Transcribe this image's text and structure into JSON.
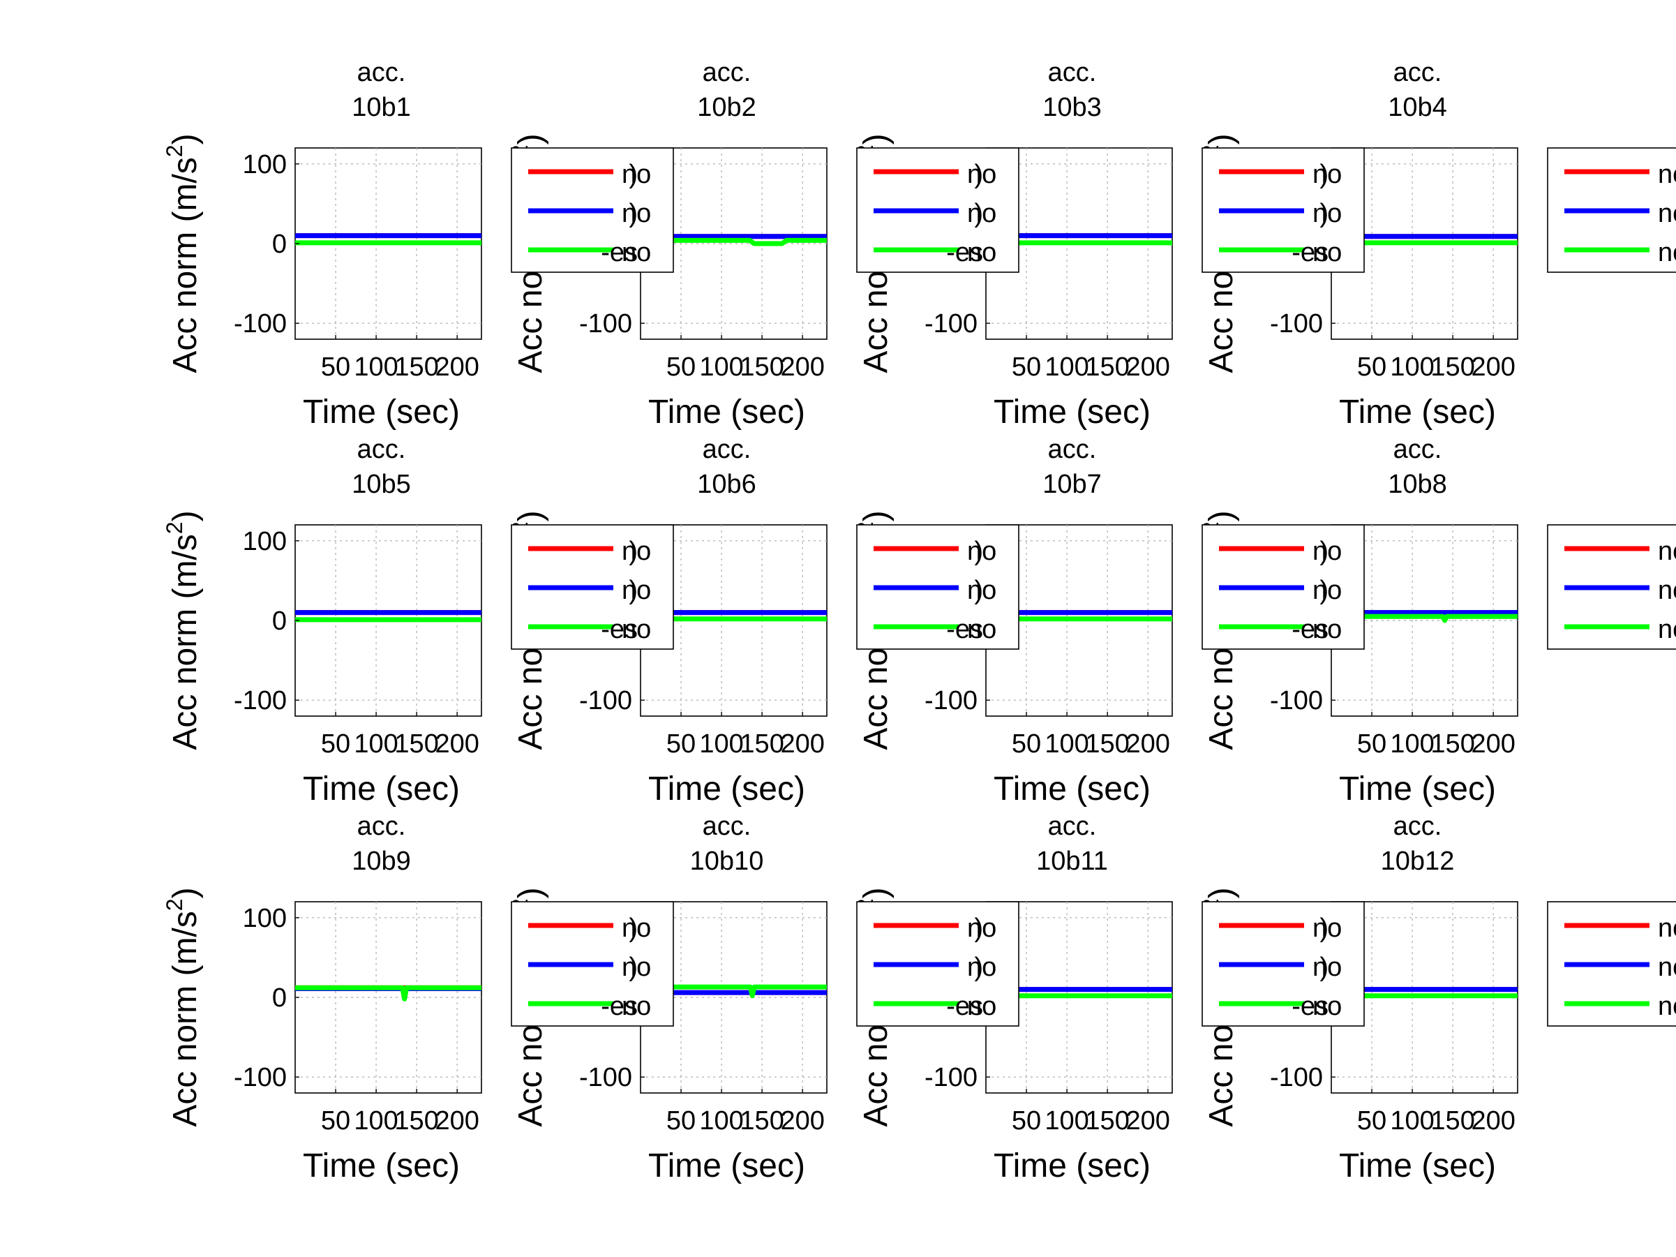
{
  "chart_data": {
    "type": "line",
    "layout": {
      "rows": 3,
      "cols": 4
    },
    "x_axis": {
      "label": "Time (sec)",
      "ticks": [
        50,
        100,
        150,
        200
      ],
      "xlim": [
        0,
        230
      ]
    },
    "y_axis": {
      "label": "Acc norm (m/s",
      "label_superscript": "2",
      "label_close": ")",
      "ticks": [
        -100,
        0,
        100
      ],
      "ylim": [
        -120,
        120
      ]
    },
    "grid": true,
    "series_colors": {
      "s1": "#ff0000",
      "s2": "#0000ff",
      "s3": "#00ff00"
    },
    "legend_entries": [
      {
        "label": "no",
        "color": "#ff0000"
      },
      {
        "label": "no",
        "color": "#0000ff"
      },
      {
        "label": "no",
        "color": "#00ff00"
      }
    ],
    "legend_fragments": [
      ")",
      ")",
      "-es"
    ],
    "panels": [
      {
        "title_line1": "acc.",
        "title_line2": "10b1",
        "series": [
          {
            "color": "#ff0000",
            "level": 10
          },
          {
            "color": "#0000ff",
            "level": 10
          },
          {
            "color": "#00ff00",
            "level": 1
          }
        ]
      },
      {
        "title_line1": "acc.",
        "title_line2": "10b2",
        "series": [
          {
            "color": "#ff0000",
            "level": 9
          },
          {
            "color": "#0000ff",
            "level": 9
          },
          {
            "color": "#00ff00",
            "level": 4,
            "dip": {
              "x0": 135,
              "x1": 180,
              "to": 0
            }
          }
        ]
      },
      {
        "title_line1": "acc.",
        "title_line2": "10b3",
        "series": [
          {
            "color": "#ff0000",
            "level": 10
          },
          {
            "color": "#0000ff",
            "level": 10
          },
          {
            "color": "#00ff00",
            "level": 1
          }
        ]
      },
      {
        "title_line1": "acc.",
        "title_line2": "10b4",
        "series": [
          {
            "color": "#ff0000",
            "level": 9
          },
          {
            "color": "#0000ff",
            "level": 9
          },
          {
            "color": "#00ff00",
            "level": 1
          }
        ]
      },
      {
        "title_line1": "acc.",
        "title_line2": "10b5",
        "series": [
          {
            "color": "#ff0000",
            "level": 10
          },
          {
            "color": "#0000ff",
            "level": 10
          },
          {
            "color": "#00ff00",
            "level": 1
          }
        ]
      },
      {
        "title_line1": "acc.",
        "title_line2": "10b6",
        "series": [
          {
            "color": "#ff0000",
            "level": 10
          },
          {
            "color": "#0000ff",
            "level": 10
          },
          {
            "color": "#00ff00",
            "level": 2
          }
        ]
      },
      {
        "title_line1": "acc.",
        "title_line2": "10b7",
        "series": [
          {
            "color": "#ff0000",
            "level": 10
          },
          {
            "color": "#0000ff",
            "level": 10
          },
          {
            "color": "#00ff00",
            "level": 2
          }
        ]
      },
      {
        "title_line1": "acc.",
        "title_line2": "10b8",
        "series": [
          {
            "color": "#ff0000",
            "level": 10
          },
          {
            "color": "#0000ff",
            "level": 10
          },
          {
            "color": "#00ff00",
            "level": 5,
            "spike": {
              "x": 140,
              "to": 0
            }
          }
        ]
      },
      {
        "title_line1": "acc.",
        "title_line2": "10b9",
        "series": [
          {
            "color": "#ff0000",
            "level": 12
          },
          {
            "color": "#0000ff",
            "level": 11
          },
          {
            "color": "#00ff00",
            "level": 12,
            "spike": {
              "x": 135,
              "to": -2
            }
          }
        ]
      },
      {
        "title_line1": "acc.",
        "title_line2": "10b10",
        "series": [
          {
            "color": "#ff0000",
            "level": 6
          },
          {
            "color": "#0000ff",
            "level": 6
          },
          {
            "color": "#00ff00",
            "level": 13,
            "spike": {
              "x": 138,
              "to": 2
            }
          }
        ]
      },
      {
        "title_line1": "acc.",
        "title_line2": "10b11",
        "series": [
          {
            "color": "#ff0000",
            "level": 10
          },
          {
            "color": "#0000ff",
            "level": 10
          },
          {
            "color": "#00ff00",
            "level": 2
          }
        ]
      },
      {
        "title_line1": "acc.",
        "title_line2": "10b12",
        "series": [
          {
            "color": "#ff0000",
            "level": 10
          },
          {
            "color": "#0000ff",
            "level": 10
          },
          {
            "color": "#00ff00",
            "level": 2
          }
        ]
      }
    ]
  }
}
